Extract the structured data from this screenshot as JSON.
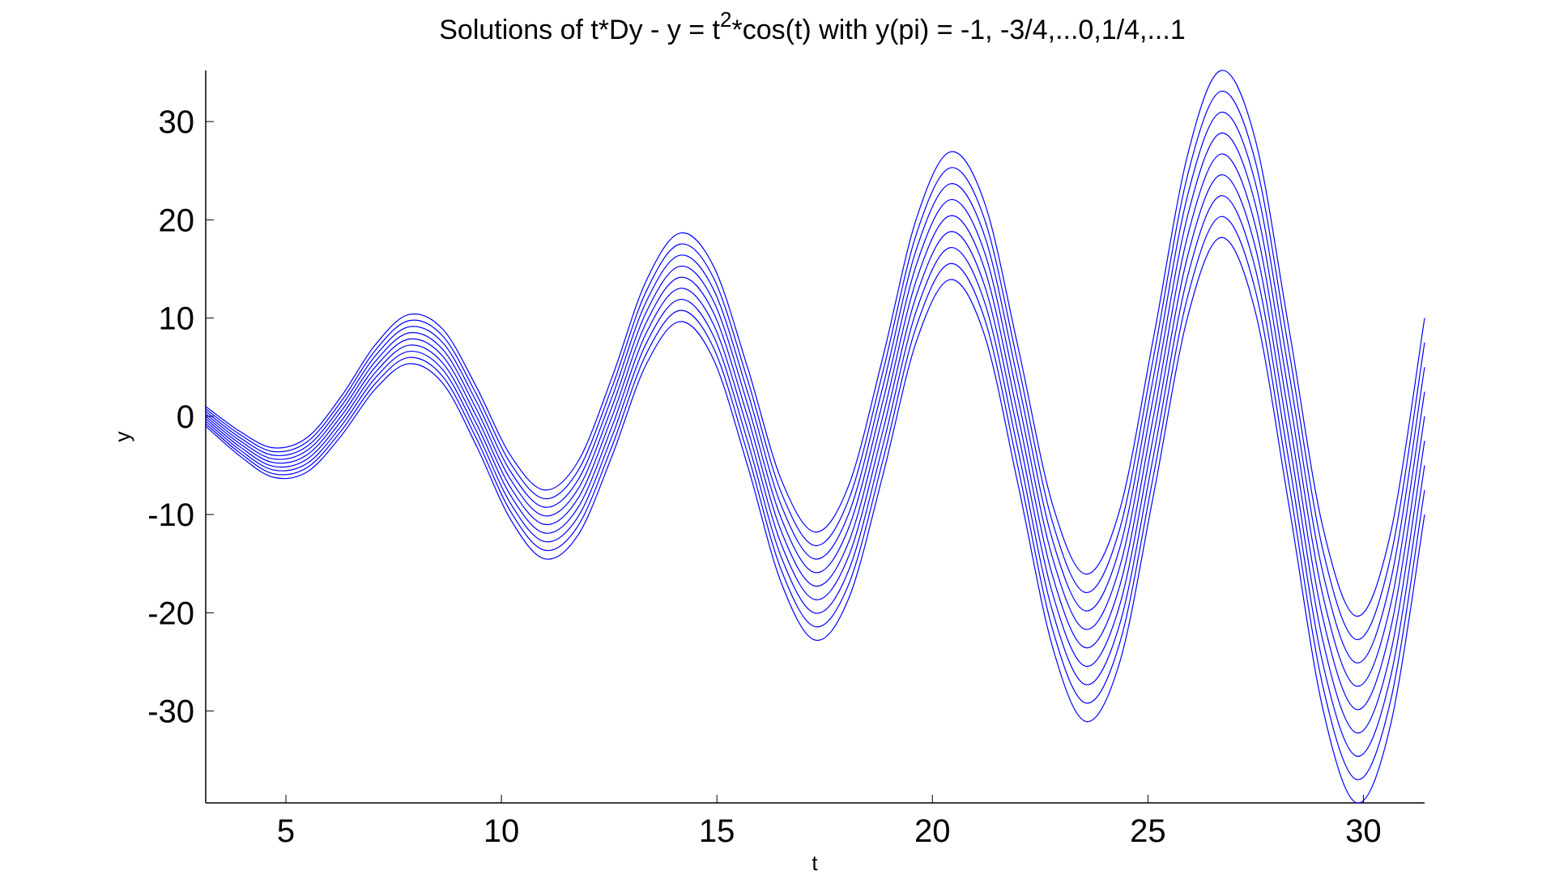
{
  "chart_data": {
    "type": "line",
    "title_segments": [
      "Solutions of t*Dy - y = t",
      "2",
      "*cos(t) with y(pi) = -1, -3/4,...0,1/4,...1"
    ],
    "x_label": "t",
    "y_label": "y",
    "x": [
      3.14,
      3.93,
      4.71,
      5.5,
      6.28,
      7.07,
      7.85,
      8.64,
      9.42,
      10.21,
      11.0,
      11.78,
      12.57,
      13.35,
      14.14,
      14.92,
      15.71,
      16.49,
      17.28,
      18.06,
      18.85,
      19.63,
      20.42,
      21.21,
      21.99,
      22.78,
      23.56,
      24.35,
      25.13,
      25.92,
      26.7,
      27.49,
      28.27,
      29.06,
      29.85,
      30.63,
      31.42
    ],
    "series": [
      {
        "color": "#0000ff",
        "values": [
          -1,
          -4.03,
          -6.21,
          -5.64,
          -2,
          2.75,
          5.35,
          3.36,
          -3,
          -10.47,
          -14.5,
          -12.08,
          -4,
          5.19,
          9.64,
          5.8,
          -5,
          -16.91,
          -22.78,
          -18.52,
          -6,
          7.64,
          13.92,
          8.25,
          -7,
          -23.36,
          -31.06,
          -24.97,
          -8,
          10.08,
          18.2,
          10.69,
          -9,
          -29.8,
          -39.35,
          -31.41,
          -10
        ]
      },
      {
        "color": "#0000ff",
        "values": [
          -0.75,
          -3.72,
          -5.84,
          -5.2,
          -1.5,
          3.31,
          5.98,
          4.05,
          -2.25,
          -9.66,
          -13.63,
          -11.14,
          -3,
          6.25,
          10.77,
          6.99,
          -3.75,
          -15.6,
          -21.41,
          -17.08,
          -4.5,
          9.2,
          15.55,
          9.94,
          -5.25,
          -21.55,
          -29.19,
          -23.03,
          -6,
          12.14,
          20.33,
          12.88,
          -6.75,
          -27.49,
          -36.98,
          -28.97,
          -7.5
        ]
      },
      {
        "color": "#0000ff",
        "values": [
          -0.5,
          -3.41,
          -5.46,
          -4.77,
          -1,
          3.88,
          6.6,
          4.74,
          -1.5,
          -8.85,
          -12.75,
          -10.21,
          -2,
          7.32,
          11.89,
          8.18,
          -2.5,
          -14.29,
          -20.03,
          -15.65,
          -3,
          10.77,
          17.17,
          11.63,
          -3.5,
          -19.74,
          -27.31,
          -21.1,
          -4,
          14.21,
          22.45,
          15.07,
          -4.5,
          -25.18,
          -34.6,
          -26.54,
          -5
        ]
      },
      {
        "color": "#0000ff",
        "values": [
          -0.25,
          -3.09,
          -5.09,
          -4.33,
          -0.5,
          4.44,
          7.23,
          5.42,
          -0.75,
          -8.03,
          -11.88,
          -9.27,
          -1,
          8.38,
          13.02,
          9.36,
          -1.25,
          -12.97,
          -18.66,
          -14.21,
          -1.5,
          12.33,
          18.8,
          13.31,
          -1.75,
          -17.92,
          -25.44,
          -19.16,
          -2,
          16.27,
          24.58,
          17.25,
          -2.25,
          -22.86,
          -32.23,
          -24.1,
          -2.5
        ]
      },
      {
        "color": "#0000ff",
        "values": [
          0,
          -2.78,
          -4.71,
          -3.89,
          0,
          5.0,
          7.85,
          6.11,
          0,
          -7.22,
          -11.0,
          -8.33,
          0,
          9.44,
          14.14,
          10.55,
          0,
          -11.66,
          -17.28,
          -12.77,
          0,
          13.89,
          20.42,
          15.0,
          0,
          -16.11,
          -23.56,
          -17.22,
          0,
          18.33,
          26.7,
          19.44,
          0,
          -20.55,
          -29.85,
          -21.66,
          0
        ]
      },
      {
        "color": "#0000ff",
        "values": [
          0.25,
          -2.47,
          -4.34,
          -3.45,
          0.5,
          5.56,
          8.48,
          6.8,
          0.75,
          -6.41,
          -10.13,
          -7.39,
          1,
          10.5,
          15.27,
          11.74,
          1.25,
          -10.35,
          -15.91,
          -11.33,
          1.5,
          15.45,
          22.05,
          16.69,
          1.75,
          -14.3,
          -21.69,
          -15.28,
          2,
          20.39,
          28.83,
          21.63,
          2.25,
          -18.24,
          -27.48,
          -19.22,
          2.5
        ]
      },
      {
        "color": "#0000ff",
        "values": [
          0.5,
          -2.16,
          -3.96,
          -3.02,
          1,
          6.13,
          9.1,
          7.49,
          1.5,
          -5.6,
          -9.25,
          -6.46,
          2,
          11.57,
          16.39,
          12.93,
          2.5,
          -9.04,
          -14.53,
          -9.9,
          3,
          17.02,
          23.67,
          18.38,
          3.5,
          -12.49,
          -19.81,
          -13.35,
          4,
          22.46,
          30.95,
          23.82,
          4.5,
          -15.93,
          -25.1,
          -16.79,
          5
        ]
      },
      {
        "color": "#0000ff",
        "values": [
          0.75,
          -1.84,
          -3.59,
          -2.58,
          1.5,
          6.69,
          9.73,
          8.17,
          2.25,
          -4.78,
          -8.38,
          -5.52,
          3,
          12.63,
          17.52,
          14.11,
          3.75,
          -7.72,
          -13.16,
          -8.46,
          4.5,
          18.58,
          25.3,
          20.06,
          5.25,
          -10.67,
          -17.94,
          -11.41,
          6,
          24.52,
          33.08,
          26.0,
          6.75,
          -13.61,
          -22.73,
          -14.35,
          7.5
        ]
      },
      {
        "color": "#0000ff",
        "values": [
          1,
          -1.53,
          -3.21,
          -2.14,
          2,
          7.25,
          10.35,
          8.86,
          3,
          -3.97,
          -7.5,
          -4.58,
          4,
          13.69,
          18.64,
          15.3,
          5,
          -6.41,
          -11.78,
          -7.02,
          6,
          20.14,
          26.92,
          21.75,
          7,
          -8.86,
          -16.06,
          -9.47,
          8,
          26.58,
          35.2,
          28.19,
          9,
          -11.3,
          -20.35,
          -11.91,
          10
        ]
      }
    ],
    "xlim": [
      3.14,
      31.42
    ],
    "ylim": [
      -39.35,
      35.2
    ],
    "xticks": [
      5,
      10,
      15,
      20,
      25,
      30
    ],
    "yticks": [
      -30,
      -20,
      -10,
      0,
      10,
      20,
      30
    ],
    "grid": false
  }
}
